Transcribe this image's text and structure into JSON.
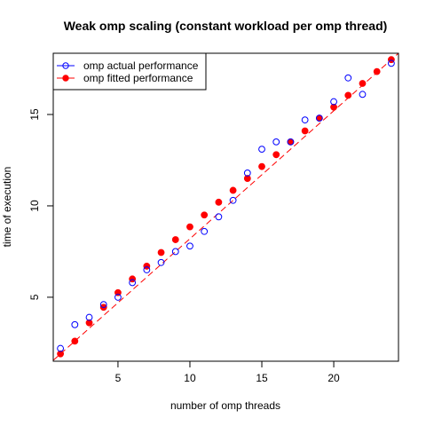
{
  "colors": {
    "actual": "#0000ff",
    "fitted": "#ff0000",
    "axis": "#000000"
  },
  "chart_data": {
    "type": "scatter",
    "title": "Weak omp scaling (constant workload per omp thread)",
    "xlabel": "number of omp threads",
    "ylabel": "time of execution",
    "xlim": [
      0.5,
      24.5
    ],
    "ylim": [
      1.5,
      18.35
    ],
    "xticks": [
      5,
      10,
      15,
      20
    ],
    "yticks": [
      5,
      10,
      15
    ],
    "grid": false,
    "legend_position": "top-left",
    "series": [
      {
        "name": "omp actual performance",
        "marker": "open-circle",
        "color": "#0000ff",
        "x": [
          1,
          2,
          3,
          4,
          5,
          6,
          7,
          8,
          9,
          10,
          11,
          12,
          13,
          14,
          15,
          16,
          17,
          18,
          19,
          20,
          21,
          22,
          24
        ],
        "y": [
          2.2,
          3.5,
          3.9,
          4.6,
          5.0,
          5.8,
          6.5,
          6.9,
          7.5,
          7.8,
          8.6,
          9.4,
          10.3,
          11.8,
          13.1,
          13.5,
          13.5,
          14.7,
          14.8,
          15.7,
          17.0,
          16.1,
          17.8
        ]
      },
      {
        "name": "omp fitted performance",
        "marker": "filled-circle",
        "line": "dashed",
        "color": "#ff0000",
        "x": [
          1,
          2,
          3,
          4,
          5,
          6,
          7,
          8,
          9,
          10,
          11,
          12,
          13,
          14,
          15,
          16,
          17,
          18,
          19,
          20,
          21,
          22,
          23,
          24
        ],
        "y": [
          1.9,
          2.6,
          3.6,
          4.45,
          5.25,
          6.0,
          6.7,
          7.45,
          8.15,
          8.85,
          9.5,
          10.2,
          10.85,
          11.5,
          12.15,
          12.8,
          13.5,
          14.1,
          14.8,
          15.4,
          16.05,
          16.7,
          17.35,
          18.0
        ]
      }
    ]
  }
}
